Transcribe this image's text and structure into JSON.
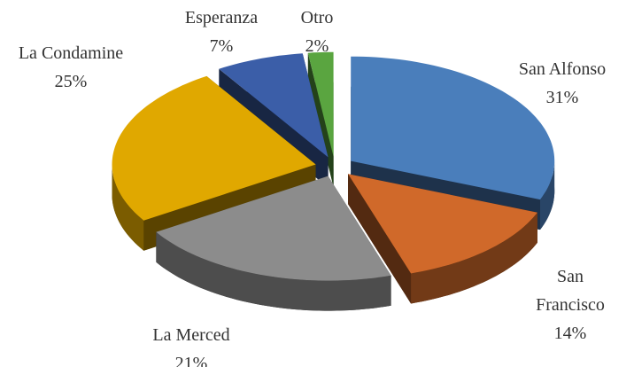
{
  "chart_data": {
    "type": "pie",
    "categories": [
      "San Alfonso",
      "San Francisco",
      "La Merced",
      "La Condamine",
      "Esperanza",
      "Otro"
    ],
    "values": [
      31,
      14,
      21,
      25,
      7,
      2
    ],
    "value_labels": [
      "31%",
      "14%",
      "21%",
      "25%",
      "7%",
      "2%"
    ],
    "colors": [
      "#4a7ebb",
      "#d0692a",
      "#8c8c8c",
      "#e0a800",
      "#3b5ea8",
      "#5aa540"
    ]
  }
}
